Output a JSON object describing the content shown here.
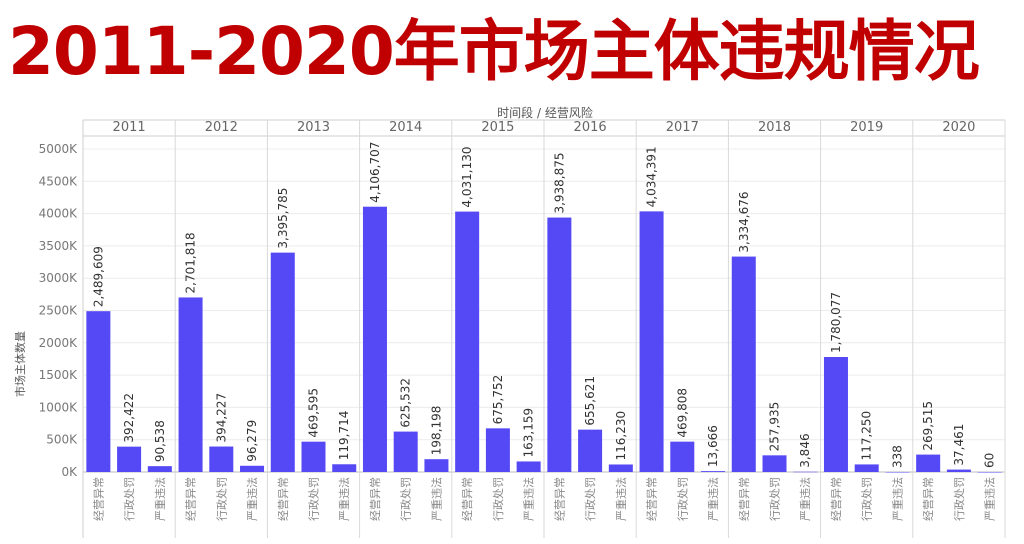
{
  "title": "2011-2020年市场主体违规情况",
  "chart_data": {
    "type": "bar",
    "header": "时间段 / 经营风险",
    "ylabel": "市场主体数量",
    "y_ticks": [
      "0K",
      "500K",
      "1000K",
      "1500K",
      "2000K",
      "2500K",
      "3000K",
      "3500K",
      "4000K",
      "4500K",
      "5000K"
    ],
    "ylim": [
      0,
      5000000
    ],
    "grid": true,
    "bar_color": "#5548f5",
    "groups": [
      "2011",
      "2012",
      "2013",
      "2014",
      "2015",
      "2016",
      "2017",
      "2018",
      "2019",
      "2020"
    ],
    "categories": [
      "经营异常",
      "行政处罚",
      "严重违法"
    ],
    "series": [
      {
        "values": [
          2489609,
          392422,
          90538
        ]
      },
      {
        "values": [
          2701818,
          394227,
          96279
        ]
      },
      {
        "values": [
          3395785,
          469595,
          119714
        ]
      },
      {
        "values": [
          4106707,
          625532,
          198198
        ]
      },
      {
        "values": [
          4031130,
          675752,
          163159
        ]
      },
      {
        "values": [
          3938875,
          655621,
          116230
        ]
      },
      {
        "values": [
          4034391,
          469808,
          13666
        ]
      },
      {
        "values": [
          3334676,
          257935,
          3846
        ]
      },
      {
        "values": [
          1780077,
          117250,
          338
        ]
      },
      {
        "values": [
          269515,
          37461,
          60
        ]
      }
    ]
  }
}
